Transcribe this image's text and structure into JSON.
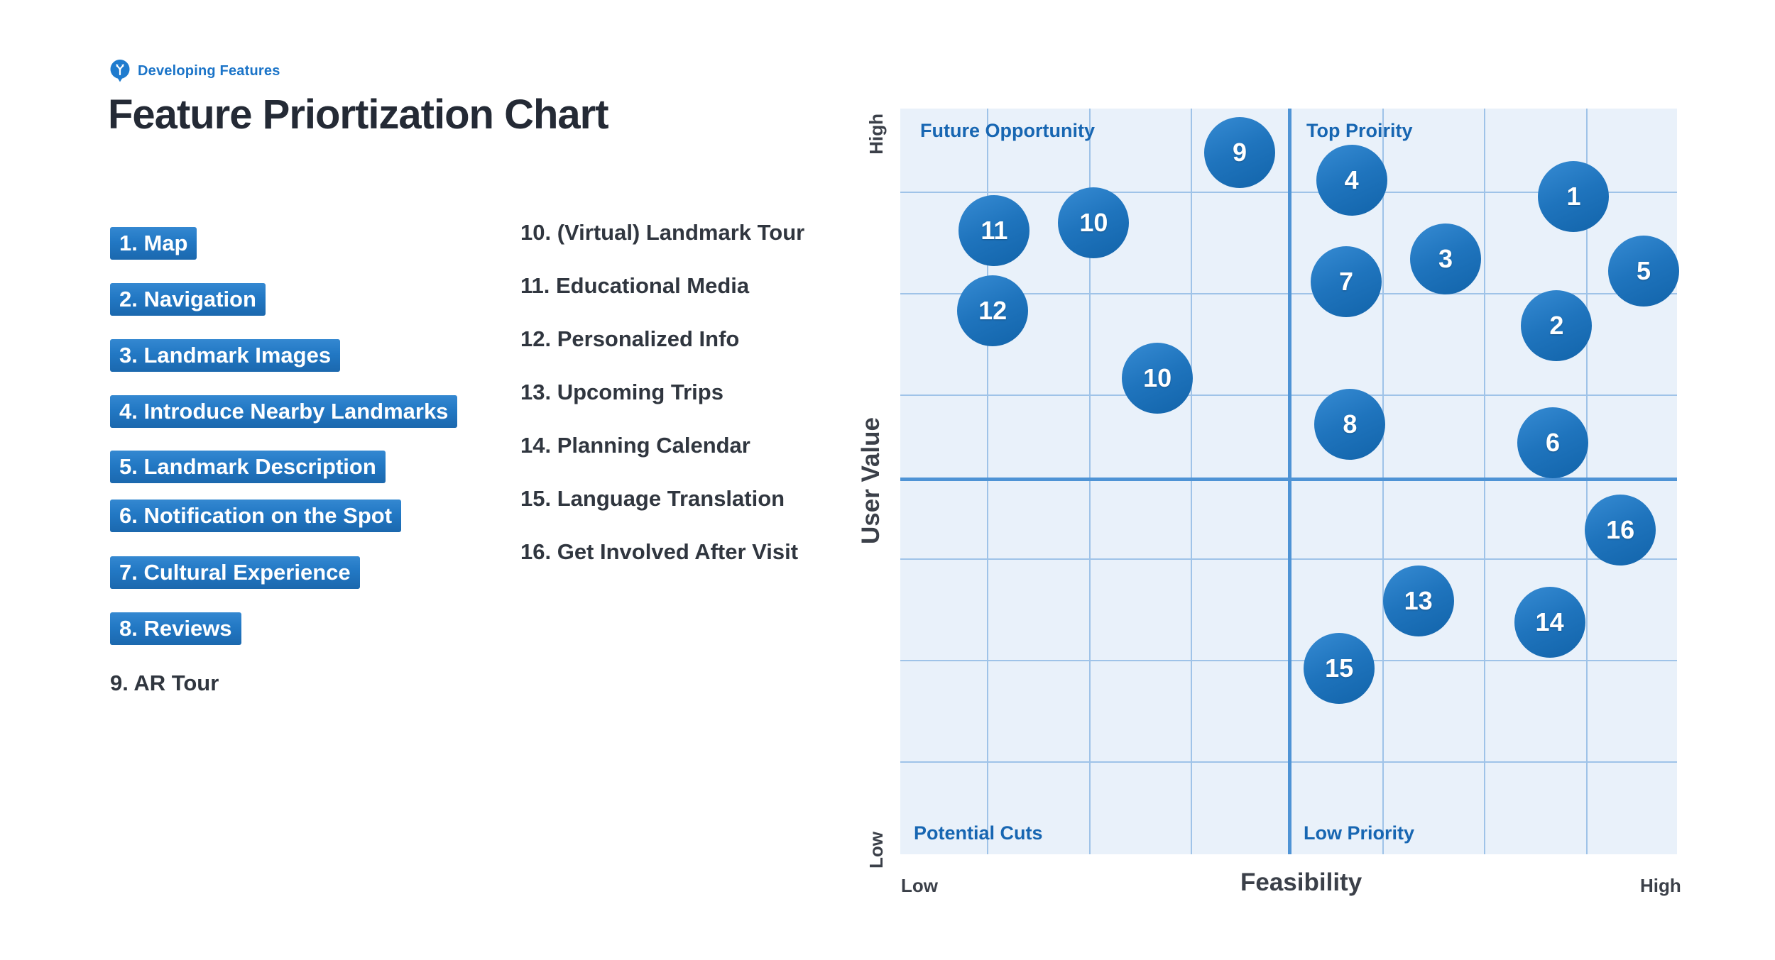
{
  "brand": {
    "name": "Developing Features"
  },
  "title": "Feature Priortization Chart",
  "features": {
    "column1": [
      {
        "label": "1. Map",
        "highlighted": true
      },
      {
        "label": "2. Navigation",
        "highlighted": true
      },
      {
        "label": "3. Landmark Images",
        "highlighted": true
      },
      {
        "label": "4. Introduce Nearby Landmarks",
        "highlighted": true
      },
      {
        "label": "5. Landmark Description",
        "highlighted": true
      },
      {
        "label": "6. Notification on the Spot",
        "highlighted": true
      },
      {
        "label": "7. Cultural Experience",
        "highlighted": true
      },
      {
        "label": "8. Reviews",
        "highlighted": true
      },
      {
        "label": "9. AR Tour",
        "highlighted": false
      }
    ],
    "column2": [
      {
        "label": "10. (Virtual) Landmark Tour"
      },
      {
        "label": "11. Educational Media"
      },
      {
        "label": "12. Personalized Info"
      },
      {
        "label": "13. Upcoming Trips"
      },
      {
        "label": "14. Planning Calendar"
      },
      {
        "label": "15. Language Translation"
      },
      {
        "label": "16. Get Involved After Visit"
      }
    ]
  },
  "chart": {
    "quadrant_labels": {
      "top_left": "Future Opportunity",
      "top_right": "Top Proirity",
      "bottom_left": "Potential Cuts",
      "bottom_right": "Low Priority"
    },
    "x_axis": {
      "title": "Feasibility",
      "left_label": "Low",
      "right_label": "High"
    },
    "y_axis": {
      "title": "User Value",
      "top_label": "High",
      "bottom_label": "Low"
    },
    "colors": {
      "bubble_fill": "#1f74bd",
      "quadrant_label": "#1766b2",
      "grid_thin": "#9fc3e8",
      "grid_thick": "#4e93d5",
      "chart_background": "#e9f1fa",
      "highlight_top": "#3488d1",
      "highlight_bottom": "#1b68ae"
    }
  },
  "chart_data": {
    "type": "scatter",
    "title": "Feature Priortization Chart",
    "xlabel": "Feasibility",
    "ylabel": "User Value",
    "xlim": [
      0,
      100
    ],
    "ylim": [
      0,
      100
    ],
    "grid": true,
    "x_gridlines_pct": [
      11.2,
      24.4,
      37.5,
      62.2,
      75.2,
      88.4
    ],
    "y_gridlines_pct": [
      11.2,
      24.8,
      38.4,
      60.4,
      74.0,
      87.6
    ],
    "divider_x_pct": 50.1,
    "divider_y_pct": 49.7,
    "points": [
      {
        "label": "1",
        "feasibility": 86.7,
        "user_value": 88.2
      },
      {
        "label": "2",
        "feasibility": 84.5,
        "user_value": 70.9
      },
      {
        "label": "3",
        "feasibility": 70.2,
        "user_value": 79.8
      },
      {
        "label": "4",
        "feasibility": 58.1,
        "user_value": 90.4
      },
      {
        "label": "5",
        "feasibility": 95.7,
        "user_value": 78.2
      },
      {
        "label": "6",
        "feasibility": 84.0,
        "user_value": 55.2
      },
      {
        "label": "7",
        "feasibility": 57.4,
        "user_value": 76.8
      },
      {
        "label": "8",
        "feasibility": 57.9,
        "user_value": 57.7
      },
      {
        "label": "9",
        "feasibility": 43.7,
        "user_value": 94.1
      },
      {
        "label": "10",
        "feasibility": 24.9,
        "user_value": 84.7
      },
      {
        "label": "10",
        "feasibility": 33.1,
        "user_value": 63.8
      },
      {
        "label": "11",
        "feasibility": 12.1,
        "user_value": 83.6
      },
      {
        "label": "12",
        "feasibility": 11.9,
        "user_value": 72.9
      },
      {
        "label": "13",
        "feasibility": 66.7,
        "user_value": 34.0
      },
      {
        "label": "14",
        "feasibility": 83.6,
        "user_value": 31.1
      },
      {
        "label": "15",
        "feasibility": 56.5,
        "user_value": 24.9
      },
      {
        "label": "16",
        "feasibility": 92.7,
        "user_value": 43.5
      }
    ]
  }
}
